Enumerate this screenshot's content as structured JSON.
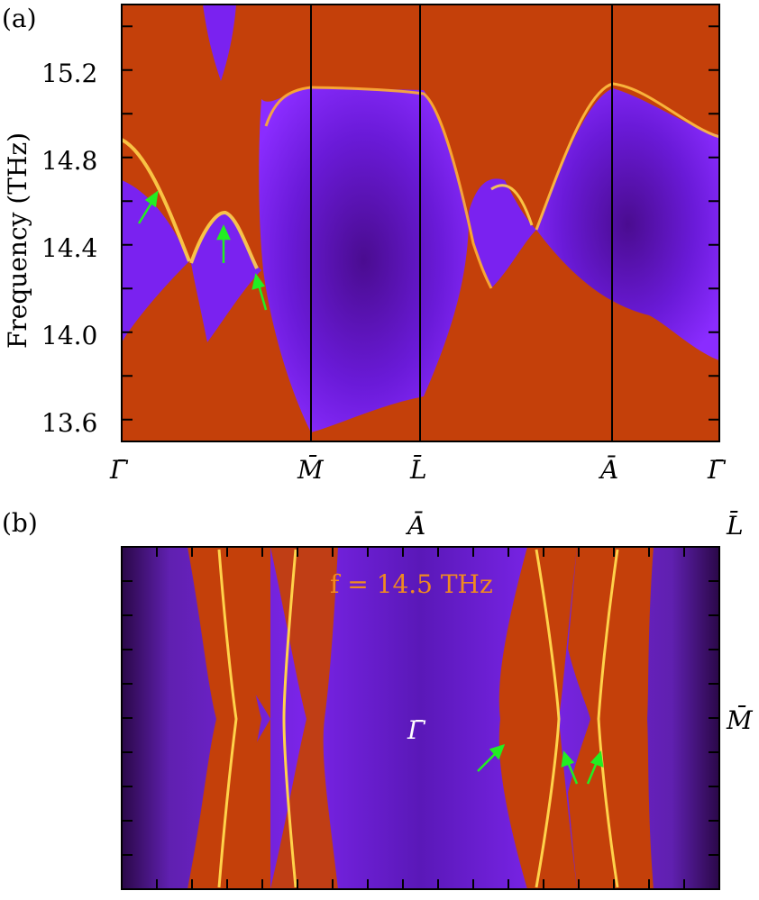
{
  "panel_a": {
    "tag": "(a)",
    "ylabel": "Frequency (THz)",
    "ytick_labels": [
      "13.6",
      "14.0",
      "14.4",
      "14.8",
      "15.2"
    ],
    "xtick_labels": [
      "Γ̄",
      "M̄",
      "L̄",
      "Ā",
      "Γ̄"
    ]
  },
  "panel_b": {
    "tag": "(b)",
    "annotation": "f = 14.5 THz",
    "top_labels": [
      "Ā",
      "L̄"
    ],
    "right_label": "M̄",
    "center_label": "Γ̄"
  },
  "colors": {
    "bulk": "#c8400a",
    "gap": "#7a1ef0",
    "gap_dark": "#3a0870",
    "surface": "#ffd050",
    "arrow": "#22ee22"
  },
  "chart_data": [
    {
      "type": "heatmap",
      "title": "",
      "xlabel": "",
      "ylabel": "Frequency (THz)",
      "x_points": [
        "Γ̄",
        "M̄",
        "L̄",
        "Ā",
        "Γ̄"
      ],
      "yticks": [
        13.6,
        14.0,
        14.4,
        14.8,
        15.2
      ],
      "ylim": [
        13.5,
        15.5
      ],
      "arrows": 3
    },
    {
      "type": "heatmap",
      "title": "",
      "annotation": "f = 14.5 THz",
      "labels": [
        "Ā",
        "L̄",
        "M̄",
        "Γ̄"
      ],
      "arrows": 3
    }
  ]
}
